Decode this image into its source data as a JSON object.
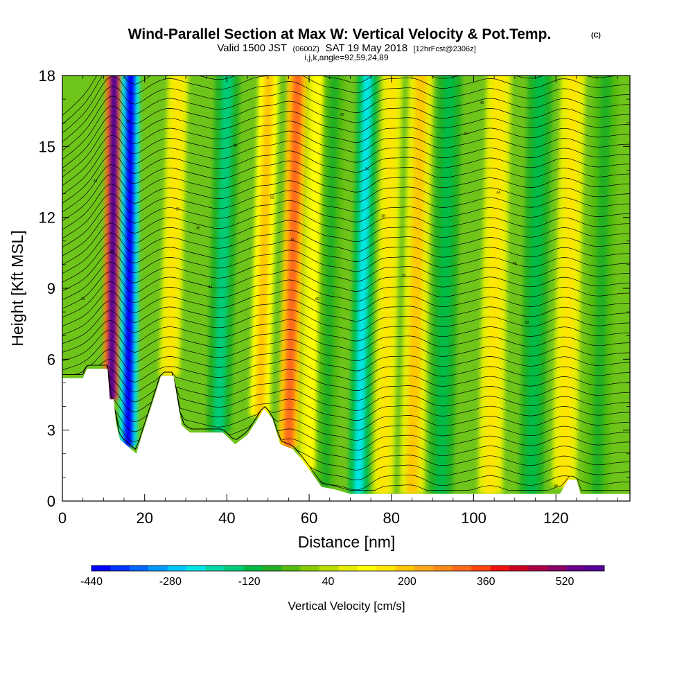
{
  "title": {
    "main": "Wind-Parallel Section at Max W: Vertical Velocity & Pot.Temp.",
    "copyright": "(C)",
    "valid_prefix": "Valid 1500 JST",
    "utc": "(0600Z)",
    "valid_date": "SAT 19 May 2018",
    "forecast": "[12hrFcst@2306z]",
    "indices": "i,j,k,angle=92,59,24,89"
  },
  "chart_data": {
    "type": "heatmap",
    "xlabel": "Distance [nm]",
    "ylabel": "Height [Kft MSL]",
    "xlim": [
      0,
      138
    ],
    "ylim": [
      0,
      18
    ],
    "x_ticks": [
      "0",
      "20",
      "40",
      "60",
      "80",
      "100",
      "120"
    ],
    "y_ticks": [
      "0",
      "3",
      "6",
      "9",
      "12",
      "15",
      "18"
    ],
    "colorbar": {
      "label": "Vertical Velocity [cm/s]",
      "tick_labels": [
        "-440",
        "-280",
        "-120",
        "40",
        "200",
        "360",
        "520"
      ],
      "range": [
        -440,
        600
      ],
      "colors": [
        "#0000ff",
        "#0033ff",
        "#0066ff",
        "#0099ff",
        "#00c8ff",
        "#00e6e6",
        "#00d9a6",
        "#00cc77",
        "#00bb44",
        "#22b022",
        "#55bb11",
        "#88cc00",
        "#bbdd00",
        "#e6ee00",
        "#ffff00",
        "#ffe600",
        "#ffc800",
        "#ffa81a",
        "#ff8a1a",
        "#ff6a1a",
        "#ff4411",
        "#ee1111",
        "#cc0022",
        "#aa0044",
        "#8a0066",
        "#6a0088",
        "#550099"
      ]
    },
    "vertical_velocity_features": [
      {
        "x": 12,
        "peak_cm_s": 600,
        "width_nm": 2
      },
      {
        "x": 16,
        "peak_cm_s": -440,
        "width_nm": 2.2
      },
      {
        "x": 26,
        "peak_cm_s": 170,
        "width_nm": 2.5
      },
      {
        "x": 38,
        "peak_cm_s": -140,
        "width_nm": 3
      },
      {
        "x": 48,
        "peak_cm_s": 200,
        "width_nm": 2.5
      },
      {
        "x": 55,
        "peak_cm_s": 330,
        "width_nm": 2.5
      },
      {
        "x": 60,
        "peak_cm_s": 110,
        "width_nm": 2.5
      },
      {
        "x": 64,
        "peak_cm_s": -100,
        "width_nm": 2.5
      },
      {
        "x": 72,
        "peak_cm_s": -250,
        "width_nm": 2.5
      },
      {
        "x": 78,
        "peak_cm_s": 160,
        "width_nm": 2.5
      },
      {
        "x": 85,
        "peak_cm_s": 180,
        "width_nm": 3
      },
      {
        "x": 92,
        "peak_cm_s": -120,
        "width_nm": 3
      },
      {
        "x": 104,
        "peak_cm_s": 170,
        "width_nm": 3
      },
      {
        "x": 114,
        "peak_cm_s": -110,
        "width_nm": 3
      },
      {
        "x": 122,
        "peak_cm_s": 170,
        "width_nm": 3
      },
      {
        "x": 130,
        "peak_cm_s": -90,
        "width_nm": 3
      }
    ],
    "terrain_kft": [
      [
        0,
        5.2
      ],
      [
        5,
        5.2
      ],
      [
        6,
        5.6
      ],
      [
        11,
        5.6
      ],
      [
        11.5,
        4.3
      ],
      [
        12.5,
        4.3
      ],
      [
        13,
        3.3
      ],
      [
        14,
        2.6
      ],
      [
        16,
        2.3
      ],
      [
        18,
        2.0
      ],
      [
        19,
        2.6
      ],
      [
        22,
        4.2
      ],
      [
        24,
        5.3
      ],
      [
        27,
        5.3
      ],
      [
        29,
        3.2
      ],
      [
        31,
        2.9
      ],
      [
        39,
        2.9
      ],
      [
        42,
        2.4
      ],
      [
        45,
        2.8
      ],
      [
        48,
        3.6
      ],
      [
        49,
        3.9
      ],
      [
        51,
        3.5
      ],
      [
        53,
        2.4
      ],
      [
        56,
        2.2
      ],
      [
        58,
        1.8
      ],
      [
        61,
        1.1
      ],
      [
        63,
        0.6
      ],
      [
        66,
        0.5
      ],
      [
        70,
        0.3
      ],
      [
        121,
        0.3
      ],
      [
        122,
        0.6
      ],
      [
        123,
        0.9
      ],
      [
        125,
        0.9
      ],
      [
        126,
        0.3
      ],
      [
        138,
        0.3
      ]
    ],
    "contour_labels": [
      "20",
      "24",
      "28",
      "32",
      "36",
      "40",
      "44",
      "48",
      "52",
      "56",
      "60"
    ]
  }
}
